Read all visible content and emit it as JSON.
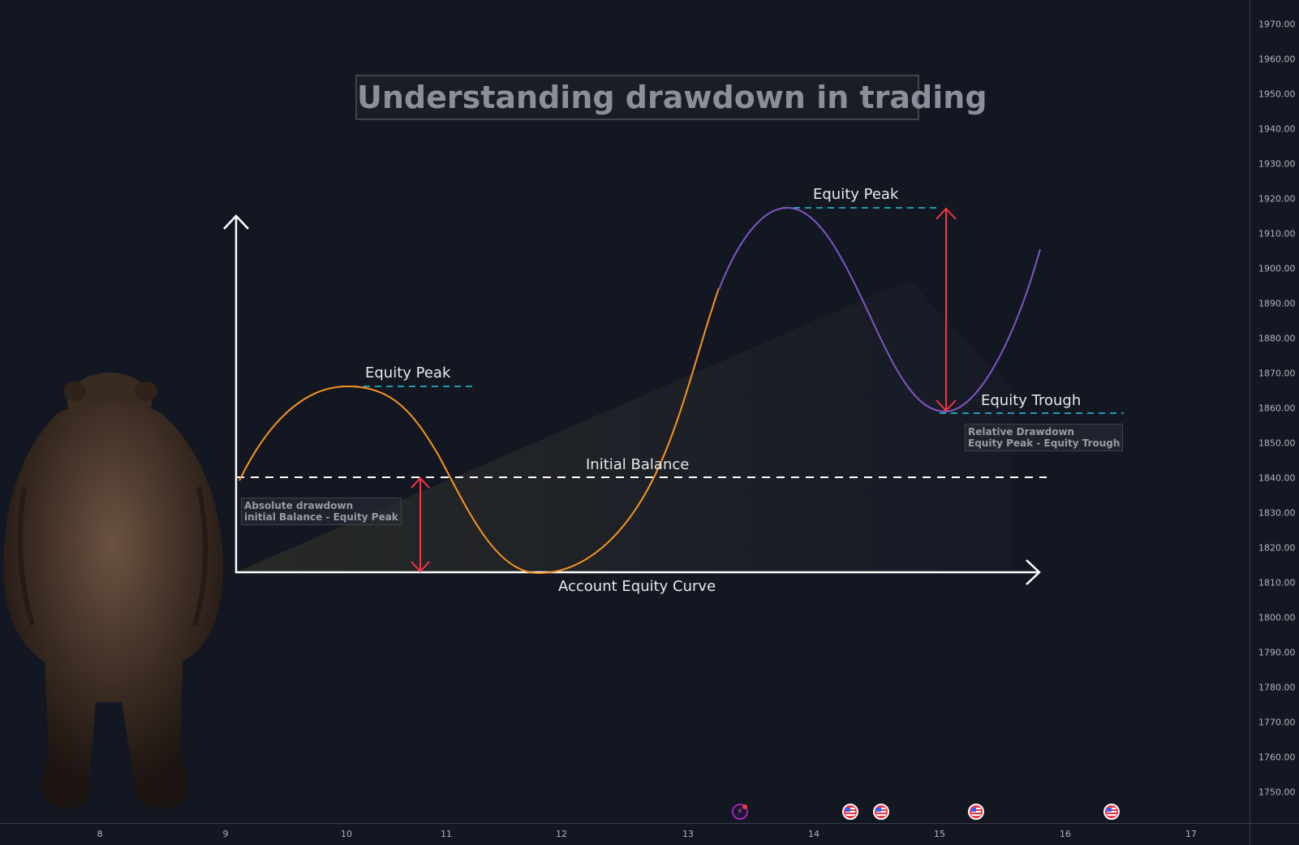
{
  "title": "Understanding drawdown in trading",
  "labels": {
    "equity_peak_1": "Equity Peak",
    "equity_peak_2": "Equity Peak",
    "equity_trough": "Equity Trough",
    "initial_balance": "Initial Balance",
    "account_equity_curve": "Account Equity Curve"
  },
  "notes": {
    "absolute_line1": "Absolute drawdown",
    "absolute_line2": "initial Balance - Equity Peak",
    "relative_line1": "Relative Drawdown",
    "relative_line2": "Equity Peak - Equity Trough"
  },
  "price_axis": {
    "ticks": [
      "1970.00",
      "1960.00",
      "1950.00",
      "1940.00",
      "1930.00",
      "1920.00",
      "1910.00",
      "1900.00",
      "1890.00",
      "1880.00",
      "1870.00",
      "1860.00",
      "1850.00",
      "1840.00",
      "1830.00",
      "1820.00",
      "1810.00",
      "1800.00",
      "1790.00",
      "1780.00",
      "1770.00",
      "1760.00",
      "1750.00"
    ]
  },
  "time_axis": {
    "ticks": [
      "8",
      "9",
      "10",
      "11",
      "12",
      "13",
      "14",
      "15",
      "16",
      "17"
    ]
  },
  "event_icons": [
    {
      "type": "bolt-icon"
    },
    {
      "type": "us-flag-icon"
    },
    {
      "type": "us-flag-icon"
    },
    {
      "type": "us-flag-icon"
    },
    {
      "type": "us-flag-icon"
    }
  ],
  "colors": {
    "background": "#131722",
    "curve_orange": "#f7931e",
    "curve_purple": "#7e57c2",
    "arrow_red": "#f23645",
    "level_cyan": "#26c6da",
    "white": "#ffffff"
  }
}
